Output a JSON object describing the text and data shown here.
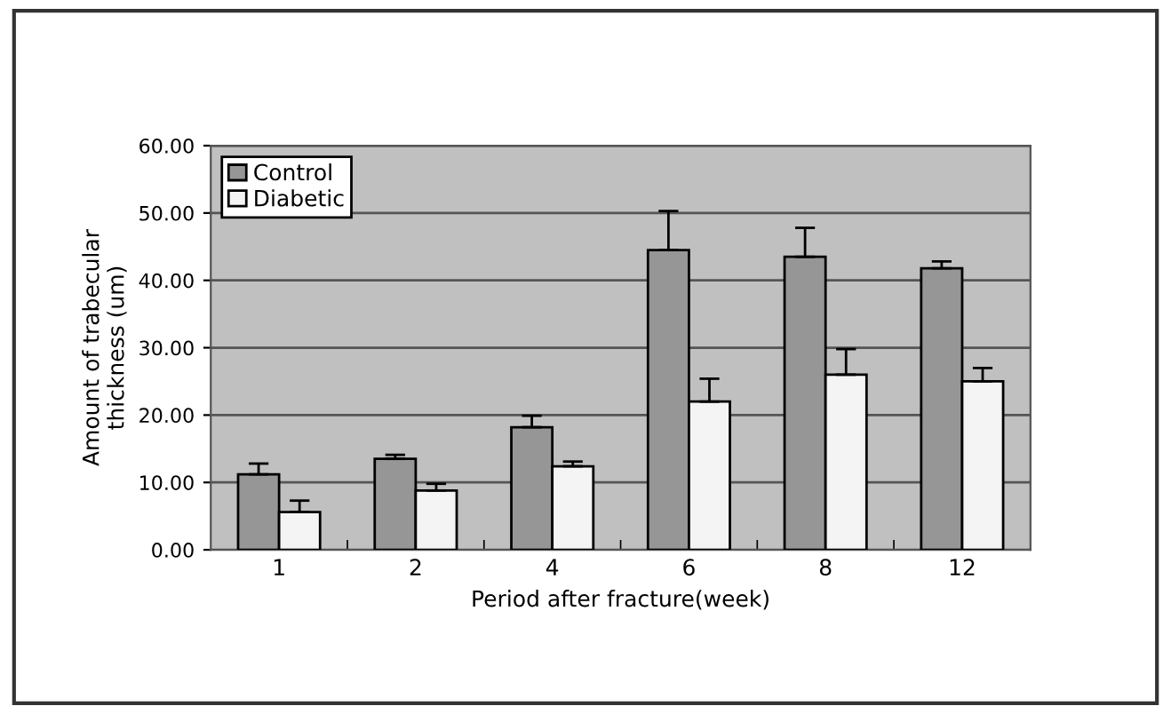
{
  "chart_data": {
    "type": "bar",
    "xlabel": "Period after fracture(week)",
    "ylabel": "Amount of trabecular\nthickness (um)",
    "categories": [
      "1",
      "2",
      "4",
      "6",
      "8",
      "12"
    ],
    "series": [
      {
        "name": "Control",
        "color": "#969696",
        "values": [
          11.2,
          13.5,
          18.2,
          44.5,
          43.5,
          41.8
        ],
        "errors": [
          [
            11.2,
            12.8
          ],
          [
            13.5,
            14.1
          ],
          [
            18.2,
            19.9
          ],
          [
            44.5,
            50.3
          ],
          [
            43.5,
            47.8
          ],
          [
            41.8,
            42.8
          ]
        ]
      },
      {
        "name": "Diabetic",
        "color": "#f4f4f4",
        "values": [
          5.6,
          8.8,
          12.4,
          22.0,
          26.0,
          25.0
        ],
        "errors": [
          [
            5.6,
            7.3
          ],
          [
            8.8,
            9.8
          ],
          [
            12.4,
            13.1
          ],
          [
            22.0,
            25.4
          ],
          [
            26.0,
            29.8
          ],
          [
            25.0,
            27.0
          ]
        ]
      }
    ],
    "ylim": [
      0,
      60
    ],
    "yticks": [
      {
        "value": 0,
        "label": "0.00"
      },
      {
        "value": 10,
        "label": "10.00"
      },
      {
        "value": 20,
        "label": "20.00"
      },
      {
        "value": 30,
        "label": "30.00"
      },
      {
        "value": 40,
        "label": "40.00"
      },
      {
        "value": 50,
        "label": "50.00"
      },
      {
        "value": 60,
        "label": "60.00"
      }
    ],
    "grid": "y",
    "legend": "top left"
  }
}
